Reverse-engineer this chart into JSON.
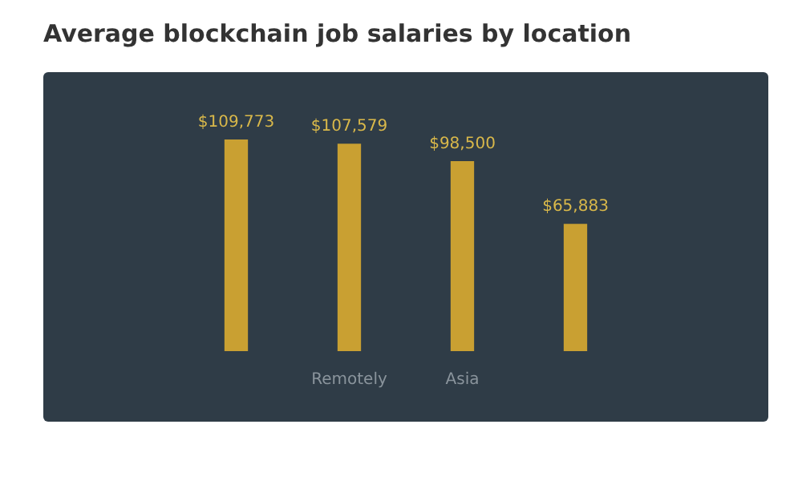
{
  "chart_data": {
    "type": "bar",
    "title": "Average blockchain job salaries by location",
    "categories": [
      null,
      "Remotely",
      "Asia",
      null
    ],
    "values": [
      109773,
      107579,
      98500,
      65883
    ],
    "value_labels": [
      "$109,773",
      "$107,579",
      "$98,500",
      "$65,883"
    ],
    "color": "#c9a032",
    "grid": false,
    "legend": false
  }
}
